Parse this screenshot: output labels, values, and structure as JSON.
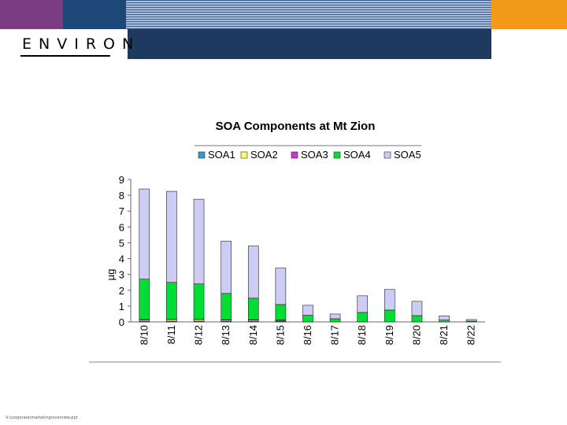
{
  "header": {
    "logo": "ENVIRON"
  },
  "footer": {
    "path": "V:\\corporate\\marketing\\overview.ppt"
  },
  "colors": {
    "purple": "#7b3c82",
    "blue": "#1d4777",
    "orange": "#f39a1b",
    "navy": "#1f3a60"
  },
  "chart_data": {
    "type": "bar",
    "stacked": true,
    "title": "SOA Components at Mt Zion",
    "xlabel": "",
    "ylabel": "µg",
    "ylim": [
      0,
      9
    ],
    "yticks": [
      "0",
      "1",
      "2",
      "3",
      "4",
      "5",
      "6",
      "7",
      "8",
      "9"
    ],
    "categories": [
      "8/10",
      "8/11",
      "8/12",
      "8/13",
      "8/14",
      "8/15",
      "8/16",
      "8/17",
      "8/18",
      "8/19",
      "8/20",
      "8/21",
      "8/22"
    ],
    "legend": {
      "placement": "top"
    },
    "series": [
      {
        "name": "SOA1",
        "color": "#3399cc",
        "values": [
          0.05,
          0.05,
          0.05,
          0.05,
          0.05,
          0.05,
          0,
          0,
          0,
          0,
          0,
          0,
          0
        ]
      },
      {
        "name": "SOA2",
        "color": "#ffff66",
        "values": [
          0.08,
          0.1,
          0.1,
          0.07,
          0.07,
          0.05,
          0,
          0,
          0,
          0,
          0,
          0,
          0
        ]
      },
      {
        "name": "SOA3",
        "color": "#cc33cc",
        "values": [
          0.02,
          0.02,
          0.02,
          0.02,
          0.02,
          0.02,
          0,
          0,
          0,
          0,
          0,
          0,
          0
        ]
      },
      {
        "name": "SOA4",
        "color": "#00dd33",
        "values": [
          2.55,
          2.33,
          2.23,
          1.66,
          1.36,
          0.98,
          0.42,
          0.2,
          0.6,
          0.75,
          0.4,
          0.12,
          0.05
        ]
      },
      {
        "name": "SOA5",
        "color": "#ccccf5",
        "values": [
          5.7,
          5.75,
          5.35,
          3.3,
          3.3,
          2.3,
          0.63,
          0.3,
          1.05,
          1.3,
          0.9,
          0.26,
          0.1
        ]
      }
    ]
  }
}
